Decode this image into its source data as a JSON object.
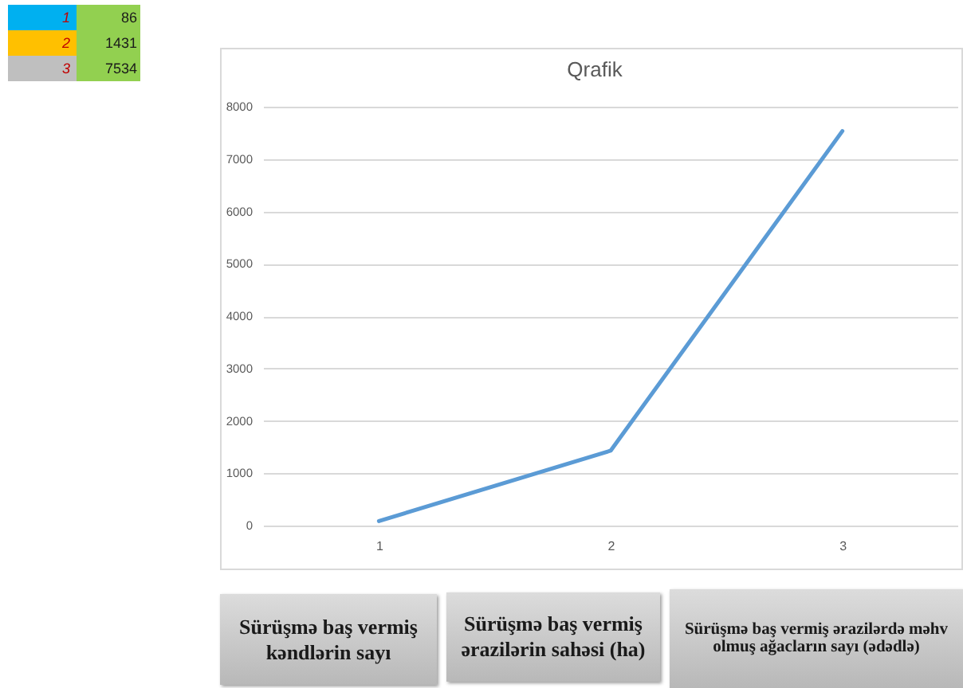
{
  "chart_data": [
    {
      "type": "other",
      "categories": [
        "1",
        "2",
        "3"
      ],
      "values": [
        86,
        1431,
        7534
      ],
      "data_labels": true
    },
    {
      "type": "line",
      "title": "Qrafik",
      "categories": [
        "1",
        "2",
        "3"
      ],
      "values": [
        86,
        1431,
        7534
      ],
      "color": "#5b9bd5",
      "ylim": [
        0,
        8000
      ],
      "yticks": [
        0,
        1000,
        2000,
        3000,
        4000,
        5000,
        6000,
        7000,
        8000
      ],
      "grid": "y",
      "annotations": [
        "Sürüşmə baş vermiş kəndlərin sayı",
        "Sürüşmə baş vermiş ərazilərin sahəsi (ha)",
        "Sürüşmə baş vermiş ərazilərdə məhv olmuş ağacların sayı (ədədlə)"
      ]
    }
  ]
}
